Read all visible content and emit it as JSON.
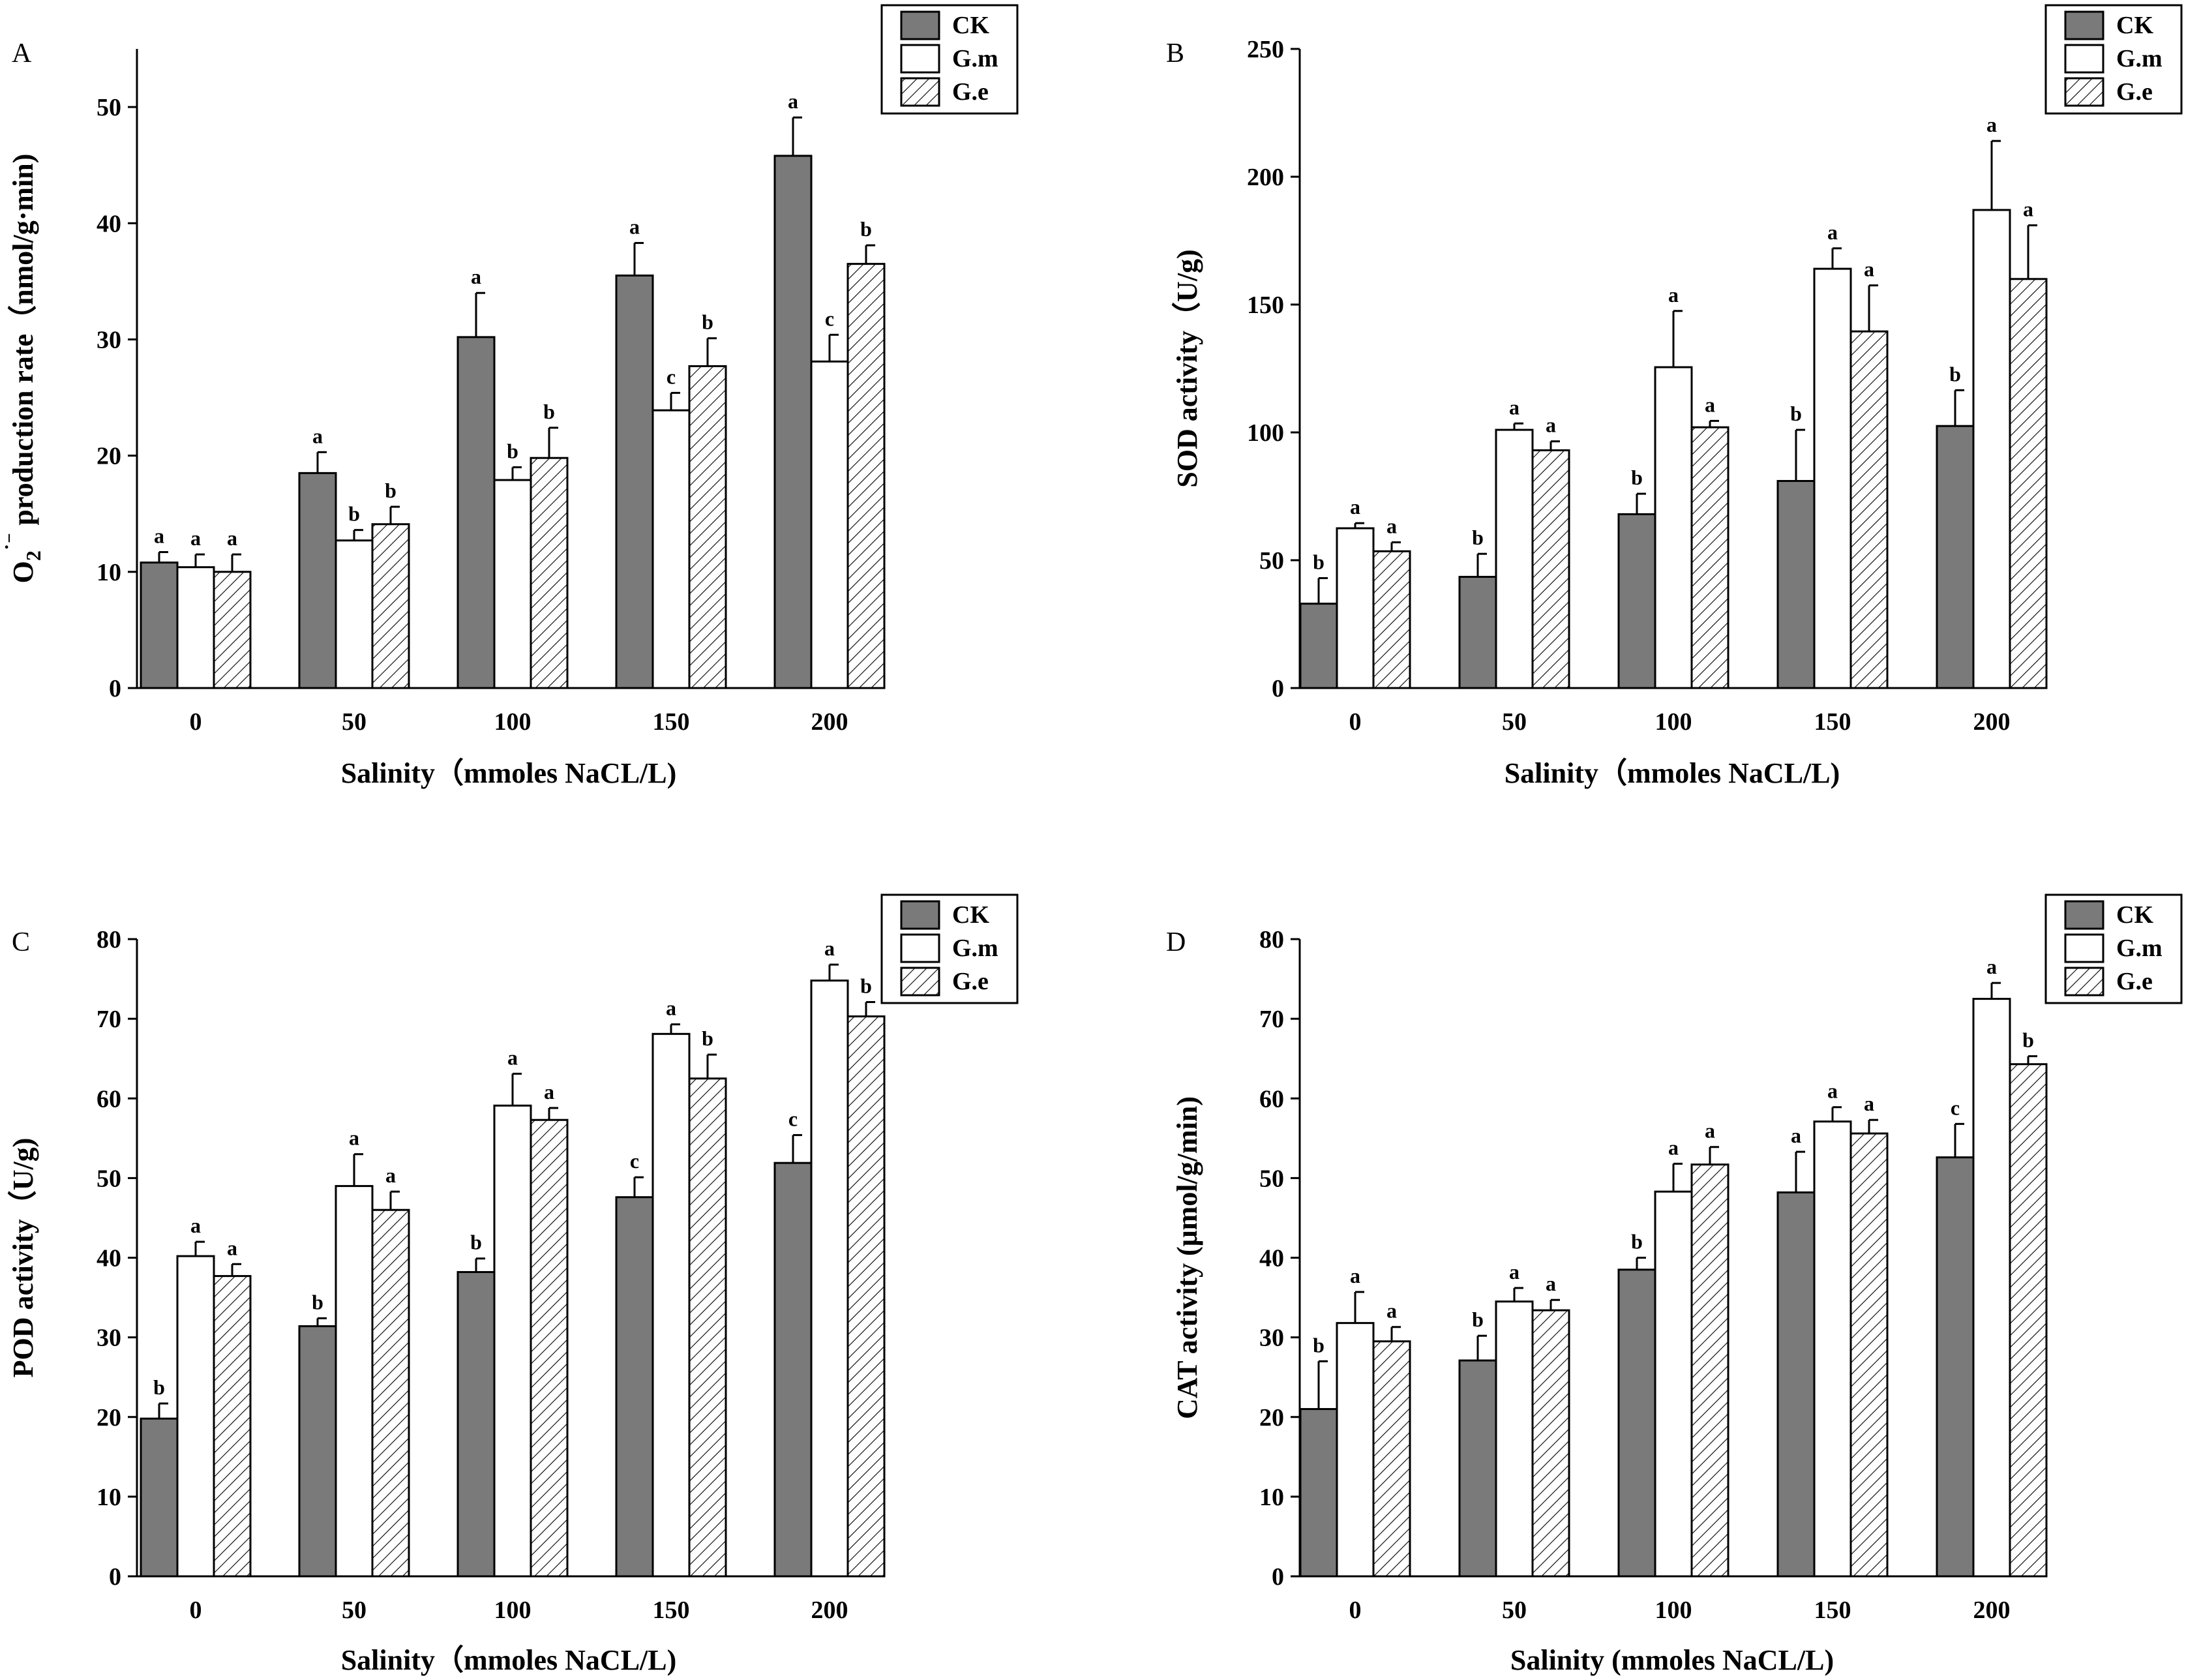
{
  "figure": {
    "legend": [
      {
        "key": "CK",
        "label": "CK"
      },
      {
        "key": "G.m",
        "label": "G.m"
      },
      {
        "key": "G.e",
        "label": "G.e"
      }
    ],
    "colors": {
      "CK": "#7a7a7a",
      "G.m": "#ffffff",
      "G.e": "hatch",
      "stroke": "#000000"
    }
  },
  "chart_data": [
    {
      "panel": "A",
      "type": "bar",
      "title": "",
      "xlabel": "Salinity（mmoles NaCL/L)",
      "ylabel": "O₂˙⁻ production rate（nmol/g·min)",
      "ylabel_parts": {
        "base": "O",
        "sub": "2",
        "sup": "˙⁻",
        "rest": " production rate（nmol/g·min)"
      },
      "ylim": [
        0,
        55
      ],
      "yticks": [
        0,
        10,
        20,
        30,
        40,
        50
      ],
      "categories": [
        "0",
        "50",
        "100",
        "150",
        "200"
      ],
      "series": [
        {
          "name": "CK",
          "values": [
            10.8,
            18.5,
            30.2,
            35.5,
            45.8
          ],
          "errors": [
            0.9,
            1.8,
            3.8,
            2.8,
            3.3
          ],
          "letters": [
            "a",
            "a",
            "a",
            "a",
            "a"
          ]
        },
        {
          "name": "G.m",
          "values": [
            10.4,
            12.7,
            17.9,
            23.9,
            28.1
          ],
          "errors": [
            1.1,
            0.9,
            1.1,
            1.5,
            2.3
          ],
          "letters": [
            "a",
            "b",
            "b",
            "c",
            "c"
          ]
        },
        {
          "name": "G.e",
          "values": [
            10.0,
            14.1,
            19.8,
            27.7,
            36.5
          ],
          "errors": [
            1.5,
            1.5,
            2.6,
            2.4,
            1.6
          ],
          "letters": [
            "a",
            "b",
            "b",
            "b",
            "b"
          ]
        }
      ]
    },
    {
      "panel": "B",
      "type": "bar",
      "title": "",
      "xlabel": "Salinity（mmoles NaCL/L)",
      "ylabel": "SOD activity（U/g)",
      "ylim": [
        0,
        250
      ],
      "yticks": [
        0,
        50,
        100,
        150,
        200,
        250
      ],
      "categories": [
        "0",
        "50",
        "100",
        "150",
        "200"
      ],
      "series": [
        {
          "name": "CK",
          "values": [
            33,
            43.5,
            68,
            81,
            102.5
          ],
          "errors": [
            10,
            9,
            8,
            20,
            14
          ],
          "letters": [
            "b",
            "b",
            "b",
            "b",
            "b"
          ]
        },
        {
          "name": "G.m",
          "values": [
            62.5,
            101,
            125.5,
            164,
            187
          ],
          "errors": [
            2,
            2.5,
            22,
            8,
            27
          ],
          "letters": [
            "a",
            "a",
            "a",
            "a",
            "a"
          ]
        },
        {
          "name": "G.e",
          "values": [
            53.5,
            93,
            102,
            139.5,
            160
          ],
          "errors": [
            3.5,
            3.5,
            2.5,
            18,
            21
          ],
          "letters": [
            "a",
            "a",
            "a",
            "a",
            "a"
          ]
        }
      ]
    },
    {
      "panel": "C",
      "type": "bar",
      "title": "",
      "xlabel": "Salinity（mmoles NaCL/L)",
      "ylabel": "POD activity（U/g)",
      "ylim": [
        0,
        80
      ],
      "yticks": [
        0,
        10,
        20,
        30,
        40,
        50,
        60,
        70,
        80
      ],
      "categories": [
        "0",
        "50",
        "100",
        "150",
        "200"
      ],
      "series": [
        {
          "name": "CK",
          "values": [
            19.8,
            31.4,
            38.2,
            47.6,
            51.9
          ],
          "errors": [
            1.9,
            1.0,
            1.7,
            2.5,
            3.5
          ],
          "letters": [
            "b",
            "b",
            "b",
            "c",
            "c"
          ]
        },
        {
          "name": "G.m",
          "values": [
            40.2,
            49.0,
            59.1,
            68.1,
            74.8
          ],
          "errors": [
            1.8,
            4.0,
            4.0,
            1.2,
            2.0
          ],
          "letters": [
            "a",
            "a",
            "a",
            "a",
            "a"
          ]
        },
        {
          "name": "G.e",
          "values": [
            37.7,
            46.0,
            57.3,
            62.5,
            70.3
          ],
          "errors": [
            1.5,
            2.3,
            1.5,
            3.0,
            1.8
          ],
          "letters": [
            "a",
            "a",
            "a",
            "b",
            "b"
          ]
        }
      ]
    },
    {
      "panel": "D",
      "type": "bar",
      "title": "",
      "xlabel": "Salinity (mmoles NaCL/L)",
      "ylabel": "CAT activity (μmol/g/min)",
      "ylim": [
        0,
        80
      ],
      "yticks": [
        0,
        10,
        20,
        30,
        40,
        50,
        60,
        70,
        80
      ],
      "categories": [
        "0",
        "50",
        "100",
        "150",
        "200"
      ],
      "series": [
        {
          "name": "CK",
          "values": [
            21.0,
            27.1,
            38.5,
            48.2,
            52.6
          ],
          "errors": [
            6.0,
            3.1,
            1.5,
            5.1,
            4.2
          ],
          "letters": [
            "b",
            "b",
            "b",
            "a",
            "c"
          ]
        },
        {
          "name": "G.m",
          "values": [
            31.8,
            34.5,
            48.3,
            57.1,
            72.5
          ],
          "errors": [
            3.9,
            1.7,
            3.5,
            1.8,
            2.0
          ],
          "letters": [
            "a",
            "a",
            "a",
            "a",
            "a"
          ]
        },
        {
          "name": "G.e",
          "values": [
            29.5,
            33.4,
            51.7,
            55.6,
            64.3
          ],
          "errors": [
            1.8,
            1.3,
            2.2,
            1.7,
            1.0
          ],
          "letters": [
            "a",
            "a",
            "a",
            "a",
            "b"
          ]
        }
      ]
    }
  ]
}
